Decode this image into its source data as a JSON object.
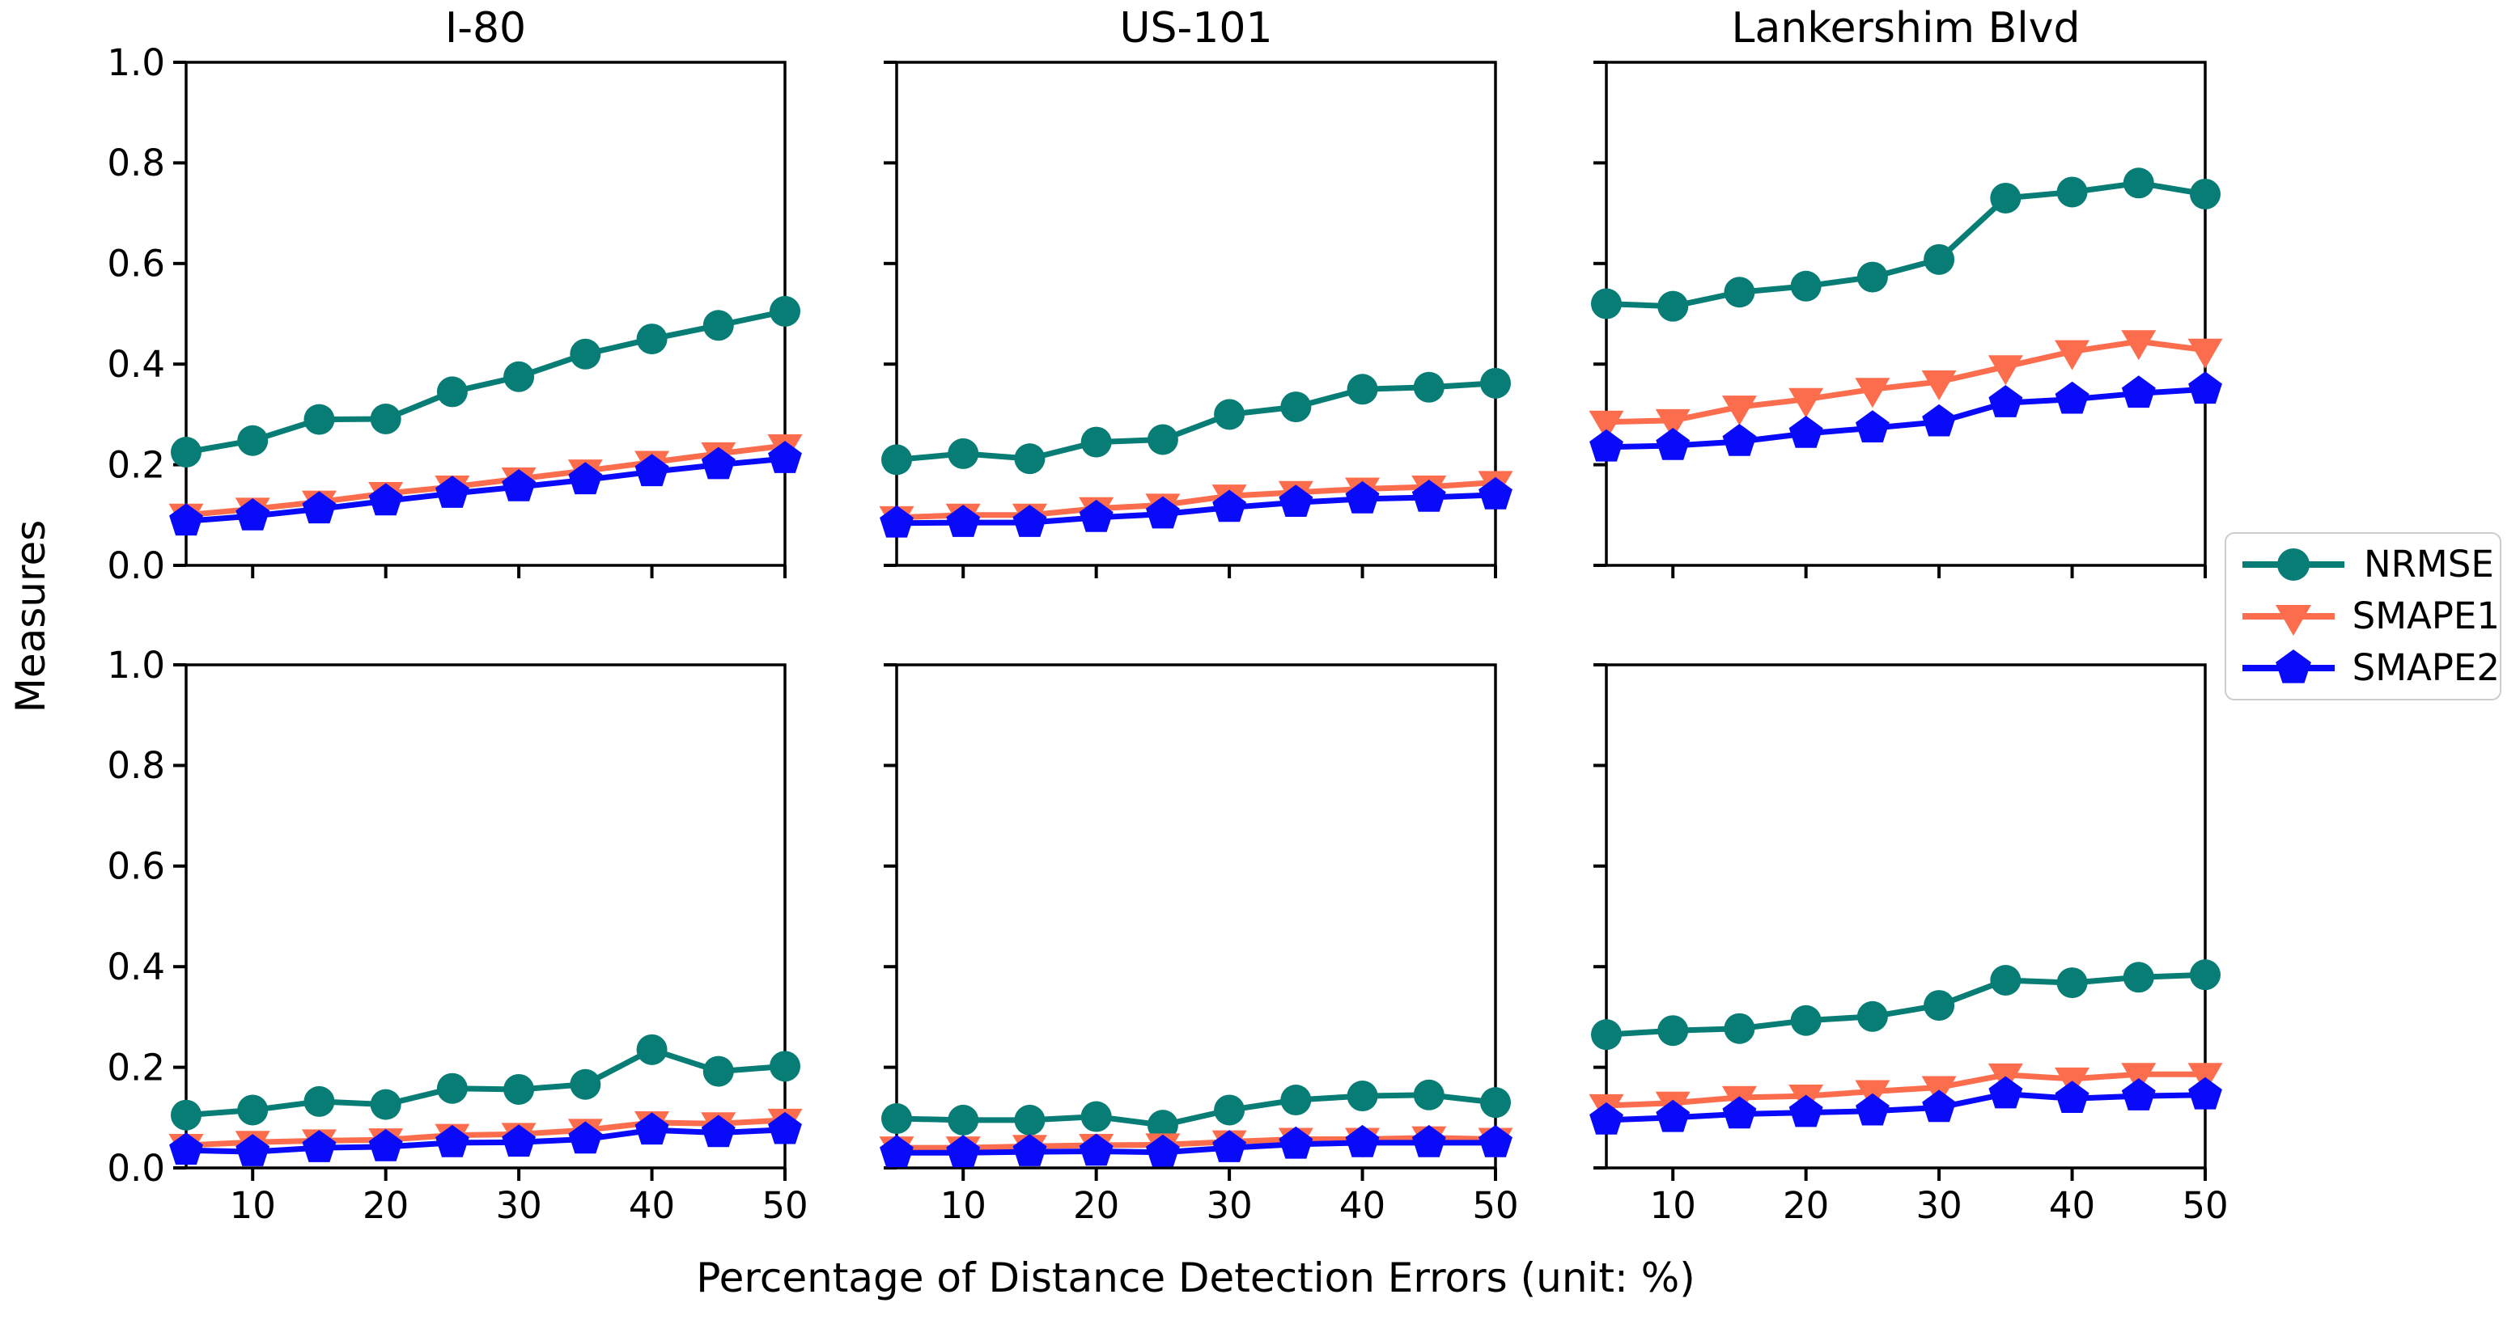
{
  "figure": {
    "background": "#ffffff",
    "xlabel": "Percentage of Distance Detection Errors (unit: %)",
    "ylabel": "Measures"
  },
  "legend": {
    "position": "center right",
    "entries": [
      {
        "label": "NRMSE",
        "marker": "circle",
        "color": "#087d76"
      },
      {
        "label": "SMAPE1",
        "marker": "triangle-down",
        "color": "#fb6d4d"
      },
      {
        "label": "SMAPE2",
        "marker": "pentagon",
        "color": "#0a0afa"
      }
    ]
  },
  "axes_style": {
    "xlim": [
      5,
      50
    ],
    "ylim": [
      0,
      1
    ],
    "xticks": [
      10,
      20,
      30,
      40,
      50
    ],
    "xticklabels": [
      "10",
      "20",
      "30",
      "40",
      "50"
    ],
    "yticks": [
      0.0,
      0.2,
      0.4,
      0.6,
      0.8,
      1.0
    ],
    "yticklabels": [
      "0.0",
      "0.2",
      "0.4",
      "0.6",
      "0.8",
      "1.0"
    ],
    "grid": false
  },
  "chart_data": [
    {
      "type": "line",
      "title": "I-80",
      "row": 0,
      "col": 0,
      "x": [
        5,
        10,
        15,
        20,
        25,
        30,
        35,
        40,
        45,
        50
      ],
      "xlim": [
        5,
        50
      ],
      "ylim": [
        0,
        1
      ],
      "series": [
        {
          "name": "NRMSE",
          "values": [
            0.225,
            0.248,
            0.29,
            0.291,
            0.345,
            0.375,
            0.42,
            0.45,
            0.477,
            0.505
          ]
        },
        {
          "name": "SMAPE1",
          "values": [
            0.1,
            0.112,
            0.126,
            0.143,
            0.156,
            0.172,
            0.188,
            0.205,
            0.222,
            0.238
          ]
        },
        {
          "name": "SMAPE2",
          "values": [
            0.088,
            0.098,
            0.112,
            0.128,
            0.143,
            0.156,
            0.17,
            0.186,
            0.2,
            0.212
          ]
        }
      ]
    },
    {
      "type": "line",
      "title": "US-101",
      "row": 0,
      "col": 1,
      "x": [
        5,
        10,
        15,
        20,
        25,
        30,
        35,
        40,
        45,
        50
      ],
      "xlim": [
        5,
        50
      ],
      "ylim": [
        0,
        1
      ],
      "series": [
        {
          "name": "NRMSE",
          "values": [
            0.21,
            0.222,
            0.212,
            0.245,
            0.25,
            0.3,
            0.315,
            0.35,
            0.354,
            0.362
          ]
        },
        {
          "name": "SMAPE1",
          "values": [
            0.095,
            0.1,
            0.1,
            0.113,
            0.12,
            0.138,
            0.145,
            0.152,
            0.156,
            0.165
          ]
        },
        {
          "name": "SMAPE2",
          "values": [
            0.084,
            0.085,
            0.085,
            0.095,
            0.102,
            0.115,
            0.125,
            0.132,
            0.135,
            0.14
          ]
        }
      ]
    },
    {
      "type": "line",
      "title": "Lankershim Blvd",
      "row": 0,
      "col": 2,
      "x": [
        5,
        10,
        15,
        20,
        25,
        30,
        35,
        40,
        45,
        50
      ],
      "xlim": [
        5,
        50
      ],
      "ylim": [
        0,
        1
      ],
      "series": [
        {
          "name": "NRMSE",
          "values": [
            0.52,
            0.515,
            0.543,
            0.555,
            0.573,
            0.608,
            0.73,
            0.742,
            0.76,
            0.738
          ]
        },
        {
          "name": "SMAPE1",
          "values": [
            0.285,
            0.288,
            0.315,
            0.33,
            0.35,
            0.365,
            0.395,
            0.425,
            0.445,
            0.428
          ]
        },
        {
          "name": "SMAPE2",
          "values": [
            0.235,
            0.238,
            0.246,
            0.262,
            0.273,
            0.285,
            0.323,
            0.33,
            0.342,
            0.35
          ]
        }
      ]
    },
    {
      "type": "line",
      "title": "",
      "row": 1,
      "col": 0,
      "x": [
        5,
        10,
        15,
        20,
        25,
        30,
        35,
        40,
        45,
        50
      ],
      "xlim": [
        5,
        50
      ],
      "ylim": [
        0,
        1
      ],
      "series": [
        {
          "name": "NRMSE",
          "values": [
            0.105,
            0.115,
            0.132,
            0.126,
            0.158,
            0.156,
            0.166,
            0.235,
            0.192,
            0.202
          ]
        },
        {
          "name": "SMAPE1",
          "values": [
            0.045,
            0.051,
            0.054,
            0.056,
            0.065,
            0.067,
            0.075,
            0.09,
            0.088,
            0.095
          ]
        },
        {
          "name": "SMAPE2",
          "values": [
            0.035,
            0.032,
            0.04,
            0.042,
            0.05,
            0.051,
            0.057,
            0.075,
            0.07,
            0.076
          ]
        }
      ]
    },
    {
      "type": "line",
      "title": "",
      "row": 1,
      "col": 1,
      "x": [
        5,
        10,
        15,
        20,
        25,
        30,
        35,
        40,
        45,
        50
      ],
      "xlim": [
        5,
        50
      ],
      "ylim": [
        0,
        1
      ],
      "series": [
        {
          "name": "NRMSE",
          "values": [
            0.098,
            0.095,
            0.095,
            0.102,
            0.085,
            0.115,
            0.135,
            0.143,
            0.145,
            0.13
          ]
        },
        {
          "name": "SMAPE1",
          "values": [
            0.04,
            0.04,
            0.043,
            0.045,
            0.046,
            0.052,
            0.057,
            0.057,
            0.06,
            0.057
          ]
        },
        {
          "name": "SMAPE2",
          "values": [
            0.03,
            0.03,
            0.032,
            0.033,
            0.031,
            0.04,
            0.047,
            0.05,
            0.05,
            0.05
          ]
        }
      ]
    },
    {
      "type": "line",
      "title": "",
      "row": 1,
      "col": 2,
      "x": [
        5,
        10,
        15,
        20,
        25,
        30,
        35,
        40,
        45,
        50
      ],
      "xlim": [
        5,
        50
      ],
      "ylim": [
        0,
        1
      ],
      "series": [
        {
          "name": "NRMSE",
          "values": [
            0.265,
            0.273,
            0.277,
            0.293,
            0.301,
            0.323,
            0.373,
            0.368,
            0.379,
            0.384
          ]
        },
        {
          "name": "SMAPE1",
          "values": [
            0.124,
            0.129,
            0.14,
            0.143,
            0.152,
            0.16,
            0.185,
            0.177,
            0.186,
            0.186
          ]
        },
        {
          "name": "SMAPE2",
          "values": [
            0.095,
            0.1,
            0.107,
            0.11,
            0.113,
            0.12,
            0.147,
            0.138,
            0.143,
            0.145
          ]
        }
      ]
    }
  ]
}
